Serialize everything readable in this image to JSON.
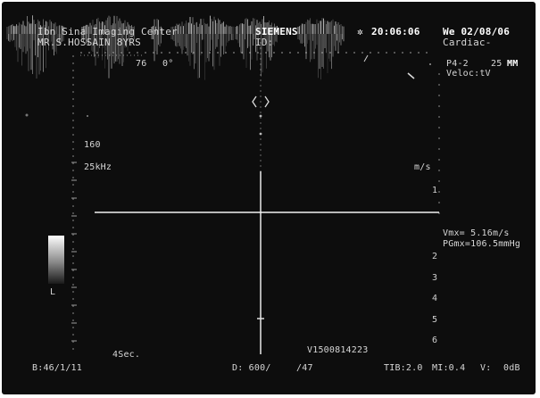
{
  "header": {
    "institution": "Ibn Sina Imaging Center",
    "patient": "MR.S.HOSSAIN 8YRS",
    "manufacturer": "SIEMENS",
    "id_label": "ID:",
    "time": "20:06:06",
    "date": "We 02/08/06",
    "preset": "Cardiac-",
    "probe": "P4-2",
    "probe_freq": "25",
    "probe_unit": "MM",
    "velocity_mode": "Veloc:tV",
    "top_value_1": "76",
    "top_value_2": "0°"
  },
  "scale": {
    "depth_label": "160",
    "prf_label": "25kHz",
    "unit_label": "m/s",
    "right_ticks": [
      "1",
      "2",
      "3",
      "4",
      "5",
      "6"
    ],
    "bottom_time": "4Sec."
  },
  "measurements": {
    "vmax": "Vmx= 5.16m/s",
    "pgmax": "PGmx=106.5mmHg"
  },
  "footer": {
    "frame": "B:46/1/11",
    "d_value": "D: 600/",
    "d_value2": "/47",
    "tib": "TIB:2.0",
    "mi": "MI:0.4",
    "v_gain": "V:",
    "db": "0dB",
    "serial": "V1500814223"
  },
  "grayscale_bar": {
    "label": "L"
  },
  "colors": {
    "screen": "#0d0d0d",
    "text": "#d6d6d6",
    "signal": "#e8e8e8"
  }
}
